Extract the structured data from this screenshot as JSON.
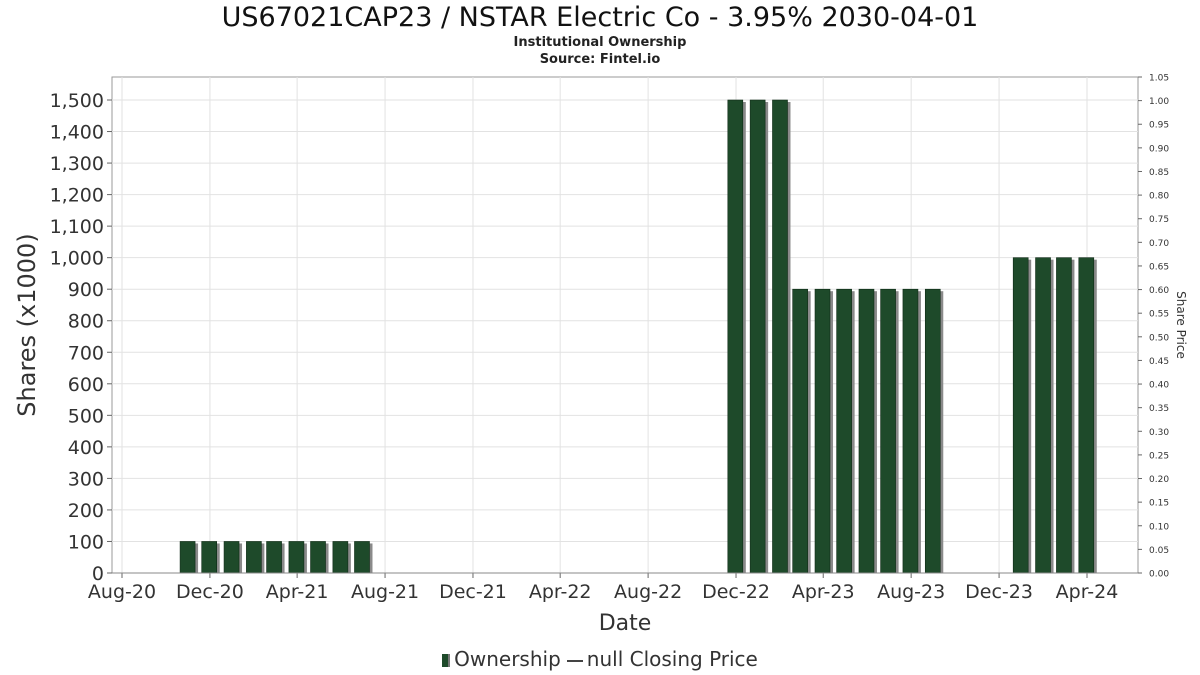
{
  "chart_data": {
    "type": "bar",
    "title": "US67021CAP23 / NSTAR Electric Co - 3.95% 2030-04-01",
    "subtitle": "Institutional Ownership",
    "source": "Source: Fintel.io",
    "xlabel": "Date",
    "ylabel": "Shares (x1000)",
    "y2label": "Share Price",
    "ylim": [
      0,
      1500
    ],
    "y2lim": [
      0,
      1.05
    ],
    "yticks": [
      "0",
      "100",
      "200",
      "300",
      "400",
      "500",
      "600",
      "700",
      "800",
      "900",
      "1,000",
      "1,100",
      "1,200",
      "1,300",
      "1,400",
      "1,500"
    ],
    "y2ticks": [
      "0.00",
      "0.05",
      "0.10",
      "0.15",
      "0.20",
      "0.25",
      "0.30",
      "0.35",
      "0.40",
      "0.45",
      "0.50",
      "0.55",
      "0.60",
      "0.65",
      "0.70",
      "0.75",
      "0.80",
      "0.85",
      "0.90",
      "0.95",
      "1.00",
      "1.05"
    ],
    "xticks": [
      "Aug-20",
      "Dec-20",
      "Apr-21",
      "Aug-21",
      "Dec-21",
      "Apr-22",
      "Aug-22",
      "Dec-22",
      "Apr-23",
      "Aug-23",
      "Dec-23",
      "Apr-24"
    ],
    "grid": true,
    "legend_position": "bottom",
    "series": [
      {
        "name": "Ownership",
        "color": "#1e4a2a",
        "dates": [
          "2020-10-31",
          "2020-11-30",
          "2020-12-31",
          "2021-01-31",
          "2021-02-28",
          "2021-03-31",
          "2021-04-30",
          "2021-05-31",
          "2021-06-30",
          "2022-11-30",
          "2022-12-31",
          "2023-01-31",
          "2023-02-28",
          "2023-03-31",
          "2023-04-30",
          "2023-05-31",
          "2023-06-30",
          "2023-07-31",
          "2023-08-31",
          "2023-12-31",
          "2024-01-31",
          "2024-02-29",
          "2024-03-31"
        ],
        "values": [
          100,
          100,
          100,
          100,
          100,
          100,
          100,
          100,
          100,
          1500,
          1500,
          1500,
          900,
          900,
          900,
          900,
          900,
          900,
          900,
          1000,
          1000,
          1000,
          1000
        ]
      },
      {
        "name": "null Closing Price",
        "color": "#444444",
        "values": []
      }
    ]
  }
}
